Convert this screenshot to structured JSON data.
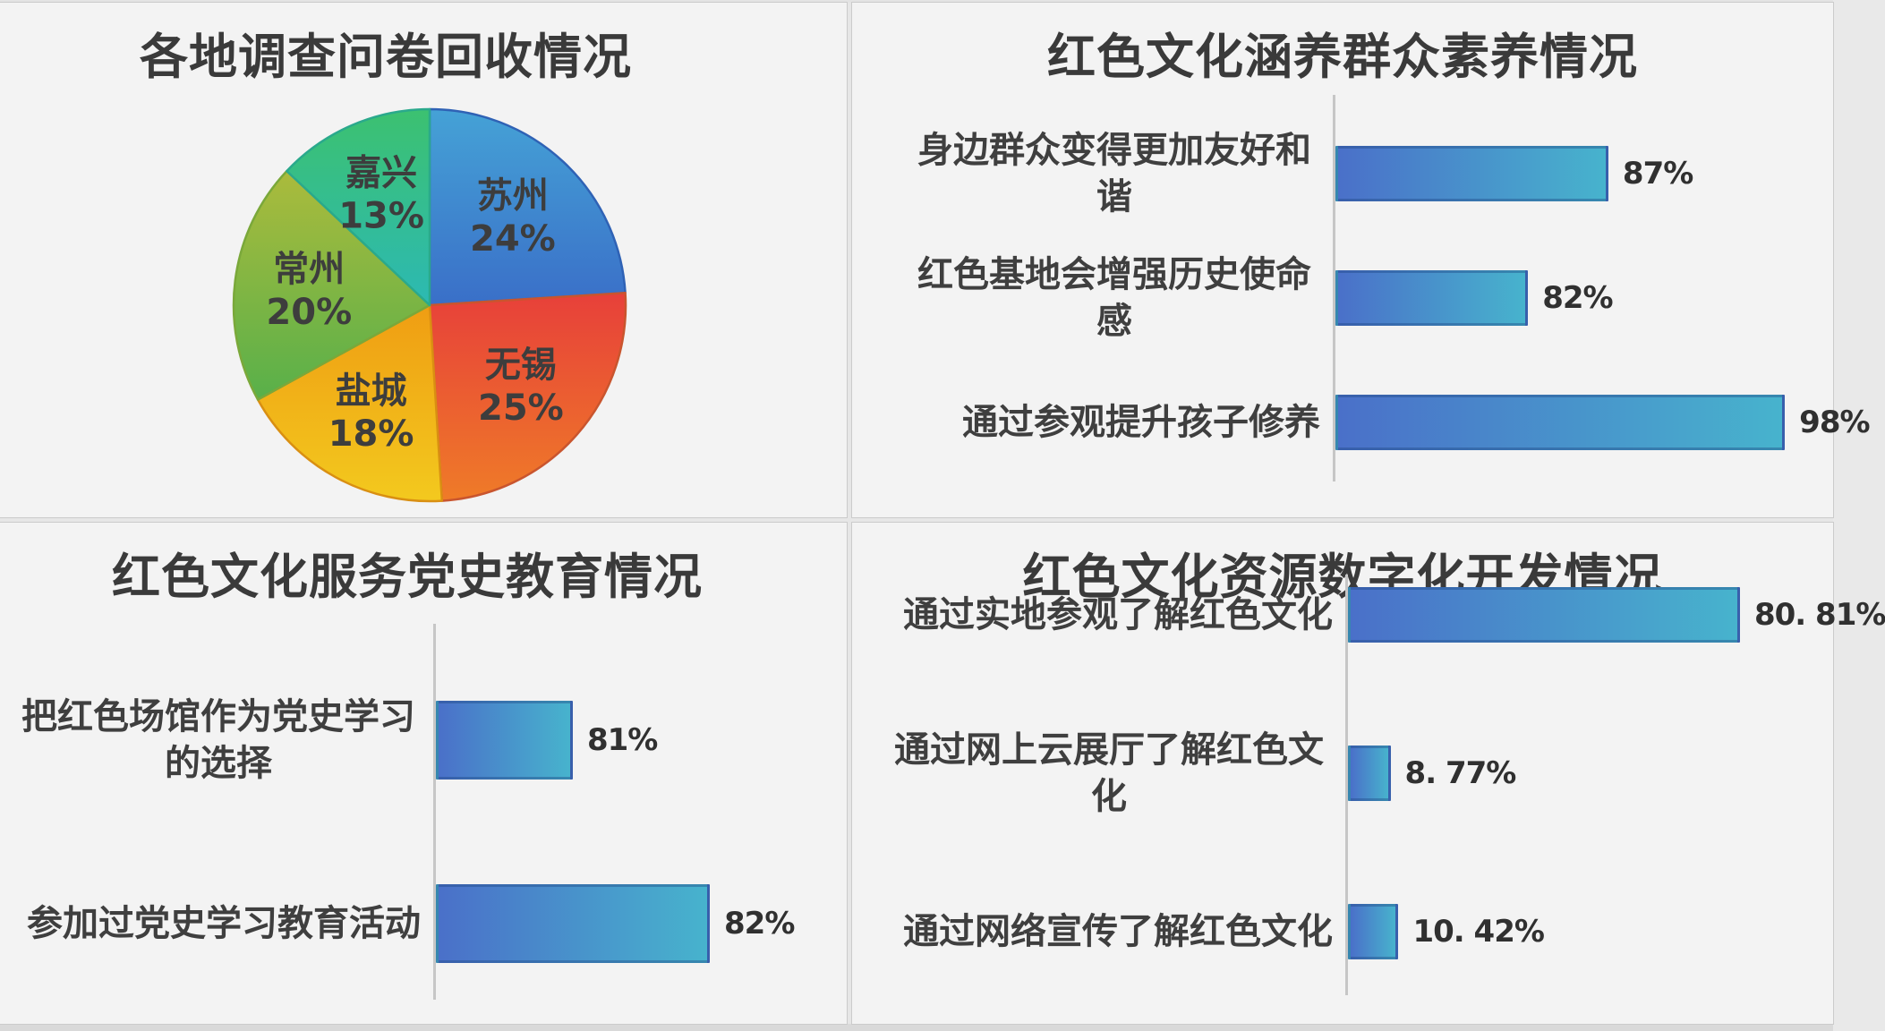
{
  "styles": {
    "panel_background": "#f3f3f3",
    "divider_color": "#cbcbcb",
    "title_color": "#3a3a3a",
    "category_label_color": "#3f3f3f",
    "value_label_color": "#303030",
    "axis_color": "#c6c6c6",
    "bar_gradient_left": "#4a70c9",
    "bar_gradient_right": "#47b3cd",
    "bar_border": "rgba(30,70,130,0.40)"
  },
  "chart_data": [
    {
      "id": "pie-questionnaire",
      "type": "pie",
      "title": "各地调查问卷回收情况",
      "categories": [
        "苏州",
        "无锡",
        "盐城",
        "常州",
        "嘉兴"
      ],
      "values": [
        24,
        25,
        18,
        20,
        13
      ],
      "slice_labels": [
        [
          "苏州",
          "24%"
        ],
        [
          "无锡",
          "25%"
        ],
        [
          "盐城",
          "18%"
        ],
        [
          "常州",
          "20%"
        ],
        [
          "嘉兴",
          "13%"
        ]
      ],
      "start_angle_deg": 0,
      "direction": "clockwise",
      "slice_colors": [
        {
          "top": "#45a2d6",
          "bottom": "#3a6fc8",
          "edge": "#2f62b5"
        },
        {
          "top": "#e7403a",
          "bottom": "#ef7b28",
          "edge": "#c9552e"
        },
        {
          "top": "#ef9d13",
          "bottom": "#f3c91e",
          "edge": "#d98f12"
        },
        {
          "top": "#abbb3c",
          "bottom": "#58b04a",
          "edge": "#7aa83a"
        },
        {
          "top": "#3cc170",
          "bottom": "#2cb9b3",
          "edge": "#2aa98c"
        }
      ],
      "label_color": "#3d3d3d",
      "legend": "none"
    },
    {
      "id": "bar-culture-nurture",
      "type": "bar",
      "orientation": "horizontal",
      "title": "红色文化涵养群众素养情况",
      "categories": [
        "身边群众变得更加友好和谐",
        "红色基地会增强历史使命感",
        "通过参观提升孩子修养"
      ],
      "values": [
        87,
        82,
        98
      ],
      "value_labels": [
        "87%",
        "82%",
        "98%"
      ],
      "xlim": [
        70,
        101
      ],
      "grid": false,
      "legend": "none"
    },
    {
      "id": "bar-party-history-education",
      "type": "bar",
      "orientation": "horizontal",
      "title": "红色文化服务党史教育情况",
      "categories": [
        "把红色场馆作为党史学习的选择",
        "参加过党史学习教育活动"
      ],
      "values": [
        81,
        82
      ],
      "value_labels": [
        "81%",
        "82%"
      ],
      "xlim": [
        80,
        83
      ],
      "grid": false,
      "legend": "none"
    },
    {
      "id": "bar-digital-development",
      "type": "bar",
      "orientation": "horizontal",
      "title": "红色文化资源数字化开发情况",
      "categories": [
        "通过实地参观了解红色文化",
        "通过网上云展厅了解红色文化",
        "通过网络宣传了解红色文化"
      ],
      "values": [
        80.81,
        8.77,
        10.42
      ],
      "value_labels": [
        "80. 81%",
        "8. 77%",
        "10. 42%"
      ],
      "xlim": [
        0,
        100
      ],
      "grid": false,
      "legend": "none"
    }
  ]
}
